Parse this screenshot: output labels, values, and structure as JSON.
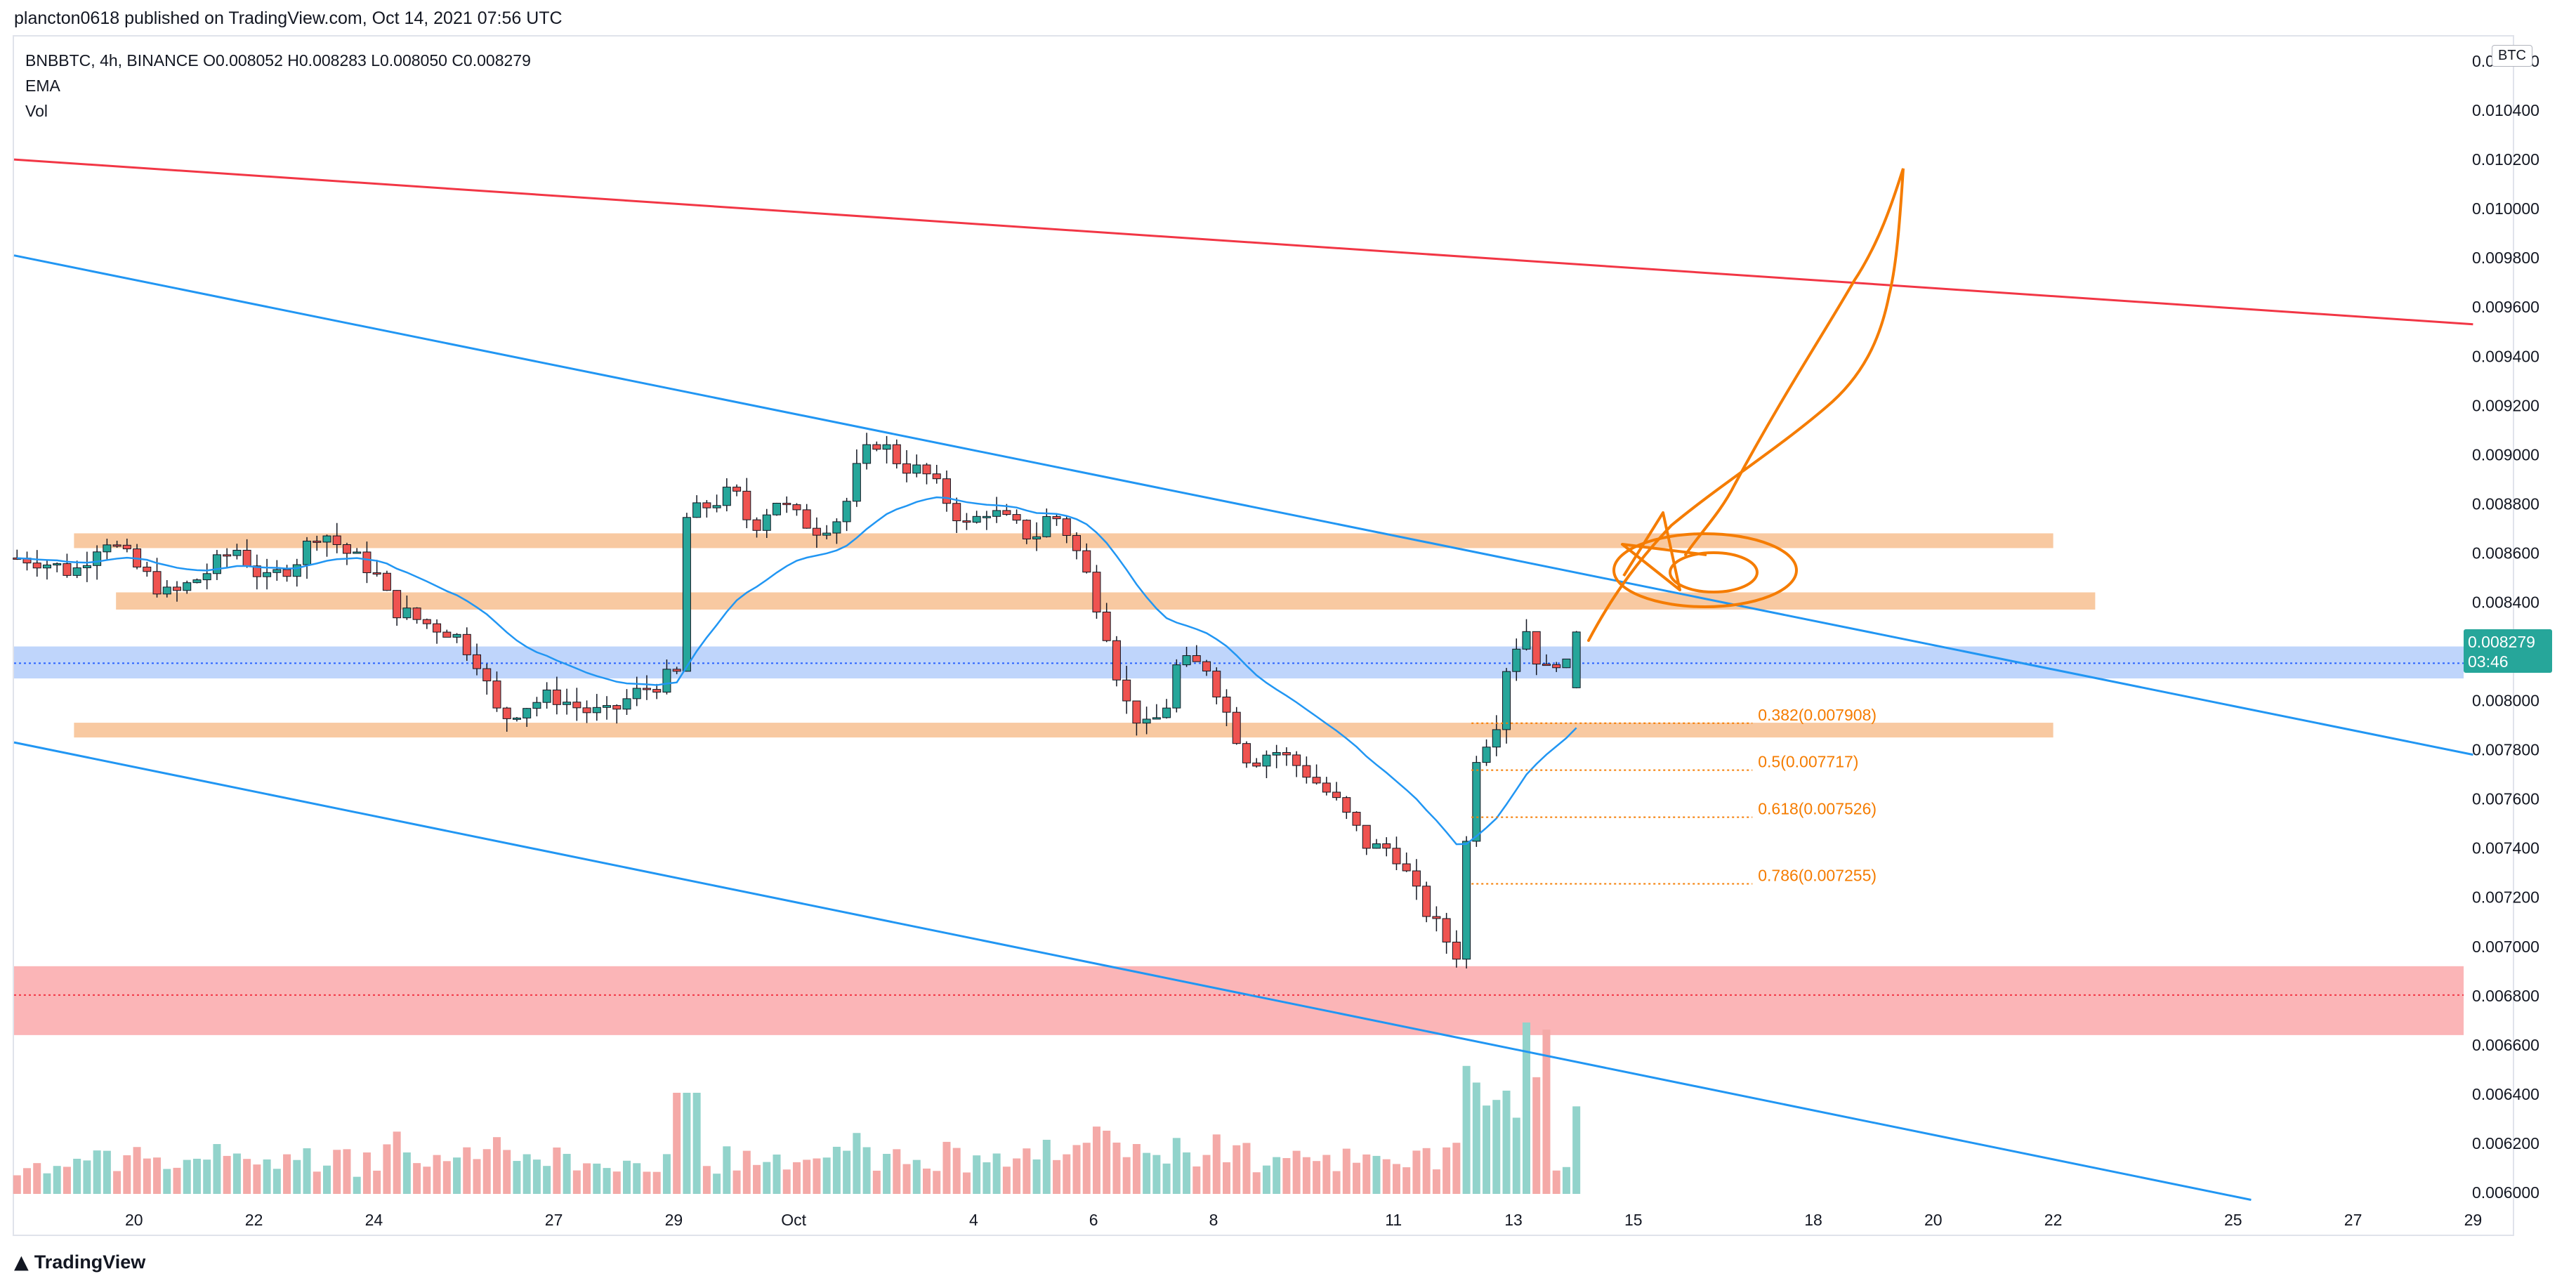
{
  "header": {
    "publisher": "plancton0618 published on TradingView.com, Oct 14, 2021 07:56 UTC"
  },
  "legend": {
    "symbol_line": "BNBBTC, 4h, BINANCE  O0.008052  H0.008283  L0.008050  C0.008279",
    "ema_label": "EMA",
    "vol_label": "Vol"
  },
  "currency_badge": "BTC",
  "price_label": {
    "value": "0.008279",
    "countdown": "03:46"
  },
  "footer": {
    "brand": "TradingView"
  },
  "colors": {
    "bull": "#26a69a",
    "bear": "#ef5350",
    "vol_bull": "#92d3cb",
    "vol_bear": "#f4a9a7",
    "ema": "#2196f3",
    "trend_blue": "#2196f3",
    "trend_red": "#f23645",
    "zone_orange": "#f8c9a1",
    "zone_blue": "#bfd5fb",
    "zone_red": "#fbb5b7",
    "fib": "#f57c00",
    "drawing": "#f57c00"
  },
  "chart_data": {
    "type": "candlestick",
    "symbol": "BNBBTC",
    "interval": "4h",
    "exchange": "BINANCE",
    "ohlc_last": {
      "open": 0.008052,
      "high": 0.008283,
      "low": 0.00805,
      "close": 0.008279
    },
    "ylim": [
      0.00598,
      0.0107
    ],
    "y_ticks": [
      0.0106,
      0.0104,
      0.0102,
      0.01,
      0.0098,
      0.0096,
      0.0094,
      0.0092,
      0.009,
      0.0088,
      0.0086,
      0.0084,
      0.0082,
      0.008,
      0.0078,
      0.0076,
      0.0074,
      0.0072,
      0.007,
      0.0068,
      0.0066,
      0.0064,
      0.0062,
      0.006
    ],
    "y_tick_labels": [
      "0.010600",
      "0.010400",
      "0.010200",
      "0.010000",
      "0.009800",
      "0.009600",
      "0.009400",
      "0.009200",
      "0.009000",
      "0.008800",
      "0.008600",
      "0.008400",
      "0.008200",
      "0.008000",
      "0.007800",
      "0.007600",
      "0.007400",
      "0.007200",
      "0.007000",
      "0.006800",
      "0.006600",
      "0.006400",
      "0.006200",
      "0.006000"
    ],
    "x_ticks": [
      {
        "day": 20,
        "label": "20"
      },
      {
        "day": 22,
        "label": "22"
      },
      {
        "day": 24,
        "label": "24"
      },
      {
        "day": 27,
        "label": "27"
      },
      {
        "day": 29,
        "label": "29"
      },
      {
        "day": 31,
        "label": "Oct"
      },
      {
        "day": 34,
        "label": "4"
      },
      {
        "day": 36,
        "label": "6"
      },
      {
        "day": 38,
        "label": "8"
      },
      {
        "day": 41,
        "label": "11"
      },
      {
        "day": 43,
        "label": "13"
      },
      {
        "day": 45,
        "label": "15"
      },
      {
        "day": 48,
        "label": "18"
      },
      {
        "day": 50,
        "label": "20"
      },
      {
        "day": 52,
        "label": "22"
      },
      {
        "day": 55,
        "label": "25"
      },
      {
        "day": 57,
        "label": "27"
      },
      {
        "day": 59,
        "label": "29"
      }
    ],
    "anchors": [
      [
        18.3,
        0.00858
      ],
      [
        19.0,
        0.00852
      ],
      [
        19.5,
        0.00867
      ],
      [
        20.0,
        0.00855
      ],
      [
        20.6,
        0.00842
      ],
      [
        21.2,
        0.00852
      ],
      [
        21.7,
        0.00862
      ],
      [
        22.2,
        0.00848
      ],
      [
        22.7,
        0.00857
      ],
      [
        23.1,
        0.0087
      ],
      [
        23.6,
        0.00859
      ],
      [
        24.0,
        0.00853
      ],
      [
        24.3,
        0.00838
      ],
      [
        24.8,
        0.00832
      ],
      [
        25.3,
        0.00828
      ],
      [
        25.7,
        0.00818
      ],
      [
        26.1,
        0.00792
      ],
      [
        26.5,
        0.00798
      ],
      [
        27.0,
        0.00802
      ],
      [
        27.5,
        0.00796
      ],
      [
        27.9,
        0.00794
      ],
      [
        28.3,
        0.00802
      ],
      [
        28.8,
        0.00808
      ],
      [
        29.1,
        0.00811
      ],
      [
        29.2,
        0.00874
      ],
      [
        29.6,
        0.0088
      ],
      [
        30.0,
        0.00885
      ],
      [
        30.3,
        0.0087
      ],
      [
        30.7,
        0.00882
      ],
      [
        31.0,
        0.00875
      ],
      [
        31.4,
        0.0087
      ],
      [
        31.8,
        0.00875
      ],
      [
        32.1,
        0.00897
      ],
      [
        32.4,
        0.00906
      ],
      [
        32.8,
        0.00896
      ],
      [
        33.2,
        0.00892
      ],
      [
        33.6,
        0.0088
      ],
      [
        33.9,
        0.0087
      ],
      [
        34.2,
        0.00878
      ],
      [
        34.6,
        0.00872
      ],
      [
        35.0,
        0.00866
      ],
      [
        35.3,
        0.00877
      ],
      [
        35.6,
        0.00867
      ],
      [
        35.9,
        0.0085
      ],
      [
        36.2,
        0.0083
      ],
      [
        36.5,
        0.008
      ],
      [
        36.9,
        0.00788
      ],
      [
        37.2,
        0.00797
      ],
      [
        37.4,
        0.00815
      ],
      [
        37.9,
        0.00814
      ],
      [
        38.3,
        0.0079
      ],
      [
        38.6,
        0.00775
      ],
      [
        39.0,
        0.0078
      ],
      [
        39.5,
        0.00772
      ],
      [
        40.0,
        0.0076
      ],
      [
        40.6,
        0.0074
      ],
      [
        41.0,
        0.0074
      ],
      [
        41.4,
        0.0072
      ],
      [
        41.8,
        0.00705
      ],
      [
        42.1,
        0.00696
      ],
      [
        42.3,
        0.00775
      ],
      [
        42.7,
        0.0079
      ],
      [
        42.9,
        0.00816
      ],
      [
        43.2,
        0.0083
      ],
      [
        43.5,
        0.0081
      ],
      [
        43.8,
        0.0082
      ],
      [
        44.0,
        0.00803
      ],
      [
        44.15,
        0.00828
      ]
    ],
    "anchors_note": "",
    "volume": {
      "max_bar_value_share": 1.0
    },
    "drawings": {
      "red_trendline": [
        [
          18.0,
          0.0102
        ],
        [
          59.0,
          0.00953
        ]
      ],
      "blue_upper_trendline": [
        [
          18.0,
          0.00981
        ],
        [
          59.0,
          0.00778
        ]
      ],
      "blue_lower_trendline": [
        [
          18.0,
          0.00783
        ],
        [
          55.3,
          0.00597
        ]
      ],
      "orange_zones": [
        {
          "x_from": 19.0,
          "x_to": 52.0,
          "y_low": 0.00862,
          "y_high": 0.00868
        },
        {
          "x_from": 19.7,
          "x_to": 52.7,
          "y_low": 0.00837,
          "y_high": 0.00844
        },
        {
          "x_from": 19.0,
          "x_to": 52.0,
          "y_low": 0.00785,
          "y_high": 0.00791
        }
      ],
      "blue_zone": {
        "y_low": 0.00809,
        "y_high": 0.00822
      },
      "red_zone": {
        "y_low": 0.00664,
        "y_high": 0.00692
      },
      "fib_levels": [
        {
          "label": "0.382(0.007908)",
          "price": 0.007908
        },
        {
          "label": "0.5(0.007717)",
          "price": 0.007717
        },
        {
          "label": "0.618(0.007526)",
          "price": 0.007526
        },
        {
          "label": "0.786(0.007255)",
          "price": 0.007255
        }
      ]
    }
  }
}
